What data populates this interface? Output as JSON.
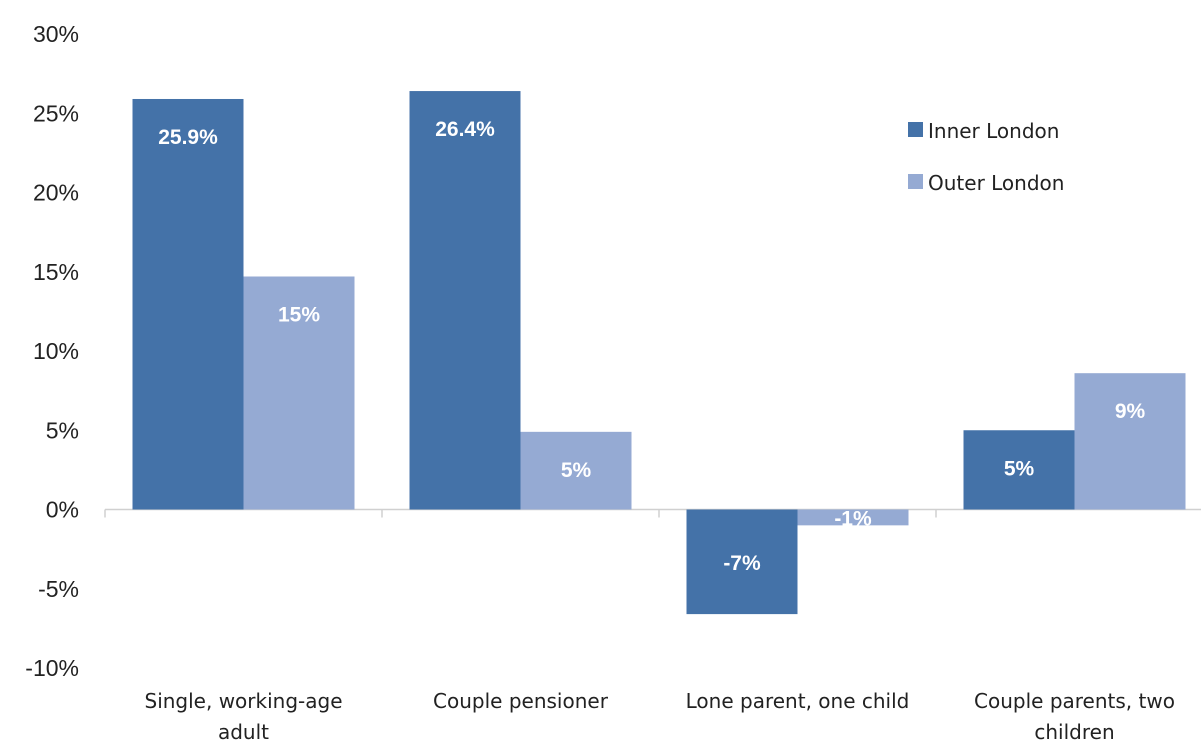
{
  "chart_data": {
    "type": "bar",
    "title": "",
    "xlabel": "",
    "ylabel": "",
    "categories": [
      [
        "Single, working-age",
        "adult"
      ],
      [
        "Couple pensioner"
      ],
      [
        "Lone parent, one child"
      ],
      [
        "Couple parents, two",
        "children"
      ]
    ],
    "series": [
      {
        "name": "Inner London",
        "color": "#4472A8",
        "values": [
          25.9,
          26.4,
          -6.6,
          5.0
        ],
        "labels": [
          "25.9%",
          "26.4%",
          "-7%",
          "5%"
        ]
      },
      {
        "name": "Outer London",
        "color": "#95AAD3",
        "values": [
          14.7,
          4.9,
          -1.0,
          8.6
        ],
        "labels": [
          "15%",
          "5%",
          "-1%",
          "9%"
        ]
      }
    ],
    "ylim": [
      -10,
      30
    ],
    "yticks": [
      30,
      25,
      20,
      15,
      10,
      5,
      0,
      -5,
      -10
    ],
    "ytick_labels": [
      "30%",
      "25%",
      "20%",
      "15%",
      "10%",
      "5%",
      "0%",
      "-5%",
      "-10%"
    ],
    "legend_position": "top-right",
    "grid": false
  }
}
